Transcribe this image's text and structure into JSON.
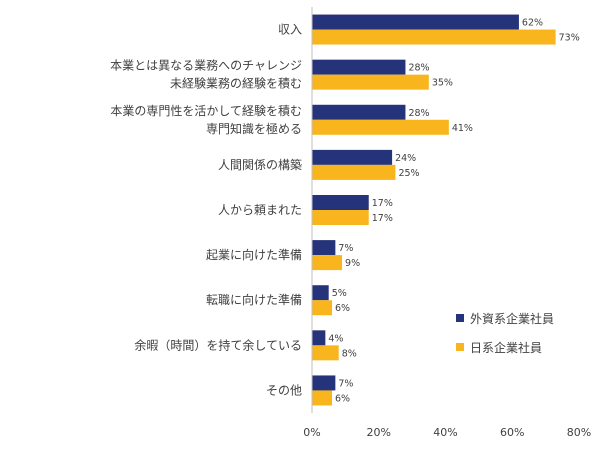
{
  "chart_data": {
    "type": "bar",
    "orientation": "horizontal",
    "categories": [
      [
        "収入"
      ],
      [
        "本業とは異なる業務へのチャレンジ",
        "未経験業務の経験を積む"
      ],
      [
        "本業の専門性を活かして経験を積む",
        "専門知識を極める"
      ],
      [
        "人間関係の構築"
      ],
      [
        "人から頼まれた"
      ],
      [
        "起業に向けた準備"
      ],
      [
        "転職に向けた準備"
      ],
      [
        "余暇（時間）を持て余している"
      ],
      [
        "その他"
      ]
    ],
    "series": [
      {
        "name": "外資系企業社員",
        "color": "#25337a",
        "values": [
          62,
          28,
          28,
          24,
          17,
          7,
          5,
          4,
          7
        ],
        "labels": [
          "62%",
          "28%",
          "28%",
          "24%",
          "17%",
          "7%",
          "5%",
          "4%",
          "7%"
        ]
      },
      {
        "name": "日系企業社員",
        "color": "#f8b51e",
        "values": [
          73,
          35,
          41,
          25,
          17,
          9,
          6,
          8,
          6
        ],
        "labels": [
          "73%",
          "35%",
          "41%",
          "25%",
          "17%",
          "9%",
          "6%",
          "8%",
          "6%"
        ]
      }
    ],
    "xlim": [
      0,
      80
    ],
    "x_ticks": [
      0,
      20,
      40,
      60,
      80
    ],
    "x_tick_labels": [
      "0%",
      "20%",
      "40%",
      "60%",
      "80%"
    ],
    "unit": "%",
    "grid": false,
    "legend_position": "bottom-right",
    "title": "",
    "xlabel": "",
    "ylabel": ""
  }
}
